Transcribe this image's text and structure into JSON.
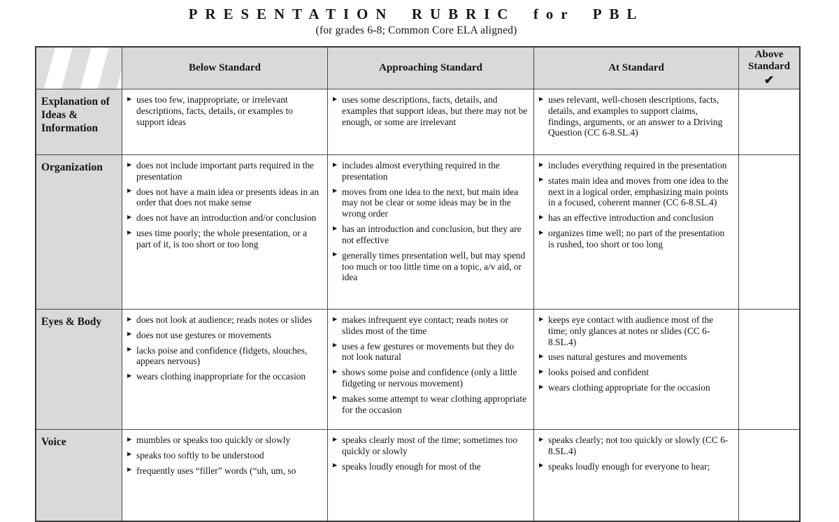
{
  "title": "PRESENTATION RUBRIC for PBL",
  "subtitle": "(for grades 6-8; Common Core ELA aligned)",
  "bullet_icon": "triangle-right-bullet",
  "table": {
    "headers": [
      "Below Standard",
      "Approaching Standard",
      "At Standard",
      "Above Standard"
    ],
    "above_check": "✔",
    "rows": [
      {
        "label": "Explanation of Ideas & Information",
        "below": [
          "uses too few, inappropriate, or irrelevant descriptions, facts, details, or examples to support ideas"
        ],
        "approaching": [
          "uses some descriptions, facts, details, and examples that support ideas, but there may not be enough, or some are irrelevant"
        ],
        "at": [
          "uses relevant, well-chosen descriptions, facts, details, and examples to support claims, findings, arguments, or an answer to a Driving Question (CC 6-8.SL.4)"
        ]
      },
      {
        "label": "Organization",
        "below": [
          "does not include important parts required in the presentation",
          "does not have a main idea or presents ideas in an order that does not make sense",
          "does not have an introduction and/or conclusion",
          "uses time poorly; the whole presentation, or a part of it, is too short or too long"
        ],
        "approaching": [
          "includes almost everything required in the presentation",
          "moves from one idea to the next, but main idea may not be clear or some ideas may be in the wrong order",
          "has an introduction and conclusion, but they are not effective",
          "generally times presentation well, but may spend too much or too little time on a topic, a/v aid, or idea"
        ],
        "at": [
          "includes everything required in the presentation",
          "states main idea and moves from one idea to the next in a logical order, emphasizing main points in a focused, coherent manner (CC 6-8.SL.4)",
          "has an effective introduction and conclusion",
          "organizes time well; no part of the presentation is rushed, too short or too long"
        ]
      },
      {
        "label": "Eyes & Body",
        "below": [
          "does not look at audience; reads notes or slides",
          "does not use gestures or movements",
          "lacks poise and confidence (fidgets, slouches, appears nervous)",
          "wears clothing inappropriate for the occasion"
        ],
        "approaching": [
          "makes infrequent eye contact; reads notes or slides most of the time",
          "uses a few gestures or movements but they do not look natural",
          "shows some poise and confidence (only a little fidgeting or nervous movement)",
          "makes some attempt to wear clothing appropriate for the occasion"
        ],
        "at": [
          "keeps eye contact with audience most of the time; only glances at notes or slides (CC 6-8.SL.4)",
          "uses natural gestures and movements",
          "looks poised and confident",
          "wears clothing appropriate for the occasion"
        ]
      },
      {
        "label": "Voice",
        "below": [
          "mumbles or speaks too quickly or slowly",
          "speaks too softly to be understood",
          "frequently uses “filler” words (“uh, um, so"
        ],
        "approaching": [
          "speaks clearly most of the time; sometimes too quickly or slowly",
          "speaks loudly enough for most of the"
        ],
        "at": [
          "speaks clearly; not too quickly or slowly (CC 6-8.SL.4)",
          "speaks loudly enough for everyone to hear;"
        ]
      }
    ]
  }
}
